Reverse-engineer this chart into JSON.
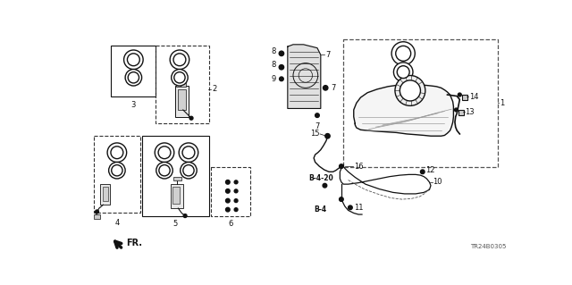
{
  "bg_color": "#ffffff",
  "part_number": "TR24B0305",
  "fig_width": 6.4,
  "fig_height": 3.19,
  "line_color": "#111111",
  "gray_color": "#888888",
  "label_fs": 6.0,
  "small_fs": 5.5
}
